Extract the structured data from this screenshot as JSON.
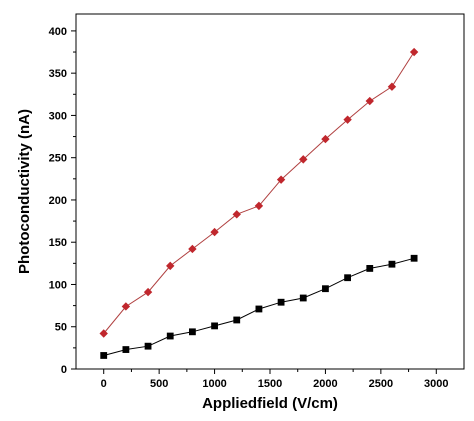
{
  "chart_data": {
    "type": "line",
    "title": "",
    "xlabel": "Appliedfield (V/cm)",
    "ylabel": "Photoconductivity (nA)",
    "xlim": [
      -250,
      3250
    ],
    "ylim": [
      0,
      420
    ],
    "xticks": [
      0,
      500,
      1000,
      1500,
      2000,
      2500,
      3000
    ],
    "yticks": [
      0,
      50,
      100,
      150,
      200,
      250,
      300,
      350,
      400
    ],
    "grid": false,
    "legend": "none",
    "series": [
      {
        "marker": "diamond",
        "color": "#c0272d",
        "line_color": "#b04040",
        "x": [
          0,
          200,
          400,
          600,
          800,
          1000,
          1200,
          1400,
          1600,
          1800,
          2000,
          2200,
          2400,
          2600,
          2800
        ],
        "y": [
          42,
          74,
          91,
          122,
          142,
          162,
          183,
          193,
          224,
          248,
          272,
          295,
          317,
          334,
          375
        ]
      },
      {
        "marker": "square",
        "color": "#000000",
        "line_color": "#000000",
        "x": [
          0,
          200,
          400,
          600,
          800,
          1000,
          1200,
          1400,
          1600,
          1800,
          2000,
          2200,
          2400,
          2600,
          2800
        ],
        "y": [
          16,
          23,
          27,
          39,
          44,
          51,
          58,
          71,
          79,
          84,
          95,
          108,
          119,
          124,
          131
        ]
      }
    ]
  }
}
